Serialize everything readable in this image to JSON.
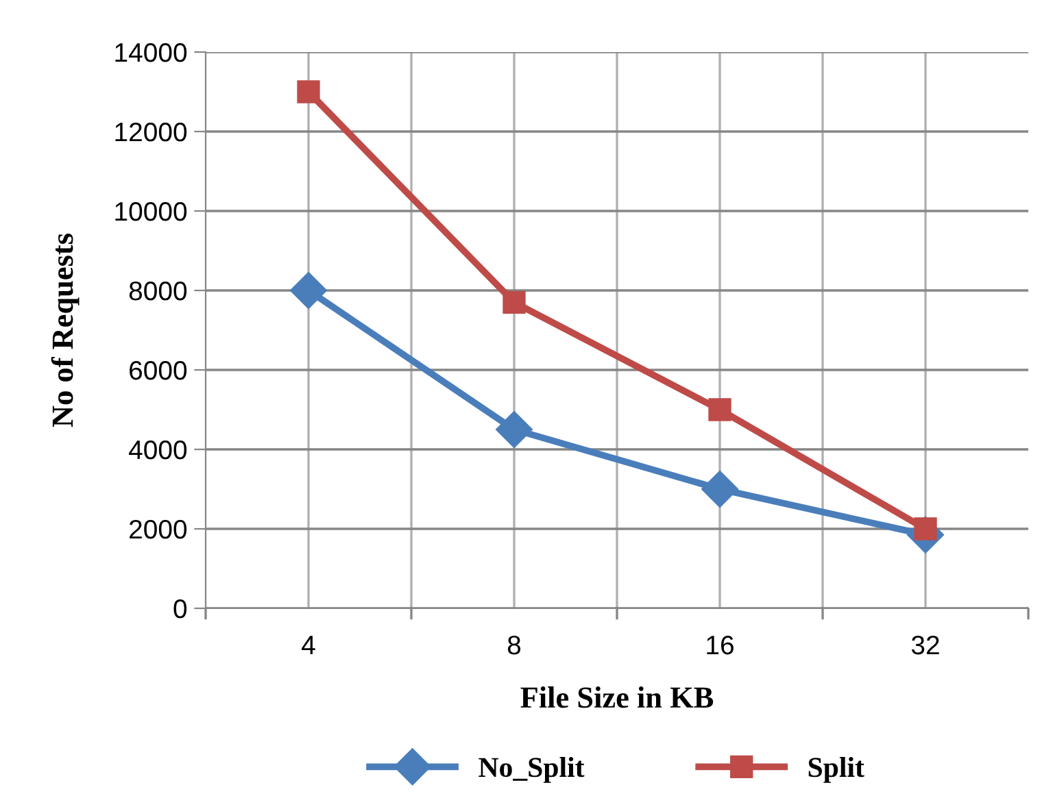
{
  "chart_data": {
    "type": "line",
    "xlabel": "File Size in KB",
    "ylabel": "No of Requests",
    "categories": [
      "4",
      "8",
      "16",
      "32"
    ],
    "series": [
      {
        "name": "No_Split",
        "color": "#4a7ebb",
        "values": [
          8000,
          4500,
          3000,
          1850
        ],
        "marker": "diamond"
      },
      {
        "name": "Split",
        "color": "#be4b48",
        "values": [
          13000,
          7700,
          5000,
          2000
        ],
        "marker": "square"
      }
    ],
    "ylim": [
      0,
      14000
    ],
    "yticks": [
      0,
      2000,
      4000,
      6000,
      8000,
      10000,
      12000,
      14000
    ],
    "grid": true,
    "legend": "bottom",
    "line_style": "solid"
  }
}
